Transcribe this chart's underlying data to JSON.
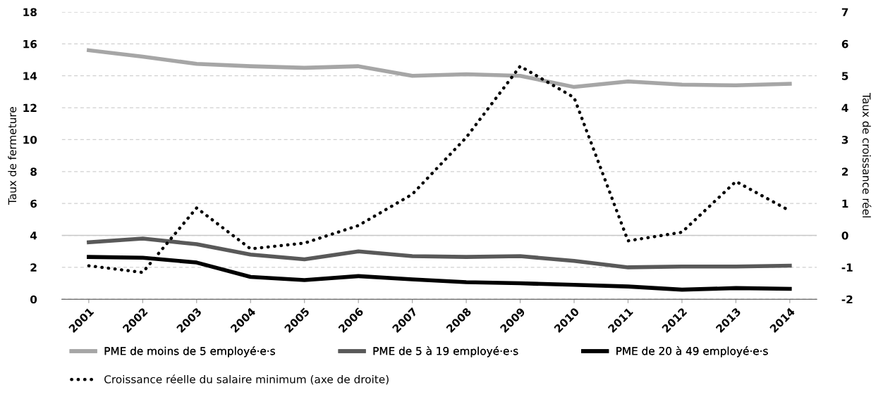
{
  "chart_data": {
    "type": "line",
    "ylabel": "Taux de fermeture",
    "y2label": "Taux de croissance réel",
    "categories": [
      "2001",
      "2002",
      "2003",
      "2004",
      "2005",
      "2006",
      "2007",
      "2008",
      "2009",
      "2010",
      "2011",
      "2012",
      "2013",
      "2014"
    ],
    "series": [
      {
        "name": "PME de moins de 5 employé·e·s",
        "color": "#a6a6a6",
        "line_style": "solid",
        "values": [
          15.6,
          15.2,
          14.75,
          14.6,
          14.5,
          14.6,
          14.0,
          14.1,
          14.0,
          13.3,
          13.65,
          13.45,
          13.4,
          13.5
        ]
      },
      {
        "name": "PME de 5 à 19 employé·e·s",
        "color": "#595959",
        "line_style": "solid",
        "values": [
          3.57,
          3.8,
          3.45,
          2.8,
          2.5,
          3.0,
          2.7,
          2.65,
          2.7,
          2.4,
          2.0,
          2.05,
          2.05,
          2.1
        ]
      },
      {
        "name": "PME de 20 à 49 employé·e·s",
        "color": "#000000",
        "line_style": "solid",
        "values": [
          2.65,
          2.6,
          2.3,
          1.4,
          1.2,
          1.45,
          1.25,
          1.07,
          1.0,
          0.9,
          0.8,
          0.6,
          0.7,
          0.65
        ]
      },
      {
        "name": "Croissance réelle du salaire minimum (axe de droite)",
        "color": "#000000",
        "line_style": "dotted",
        "axis": "y2",
        "values": [
          -0.95,
          -1.16,
          0.86,
          -0.42,
          -0.24,
          0.31,
          1.29,
          3.07,
          5.3,
          4.32,
          -0.17,
          0.1,
          1.69,
          0.77
        ]
      }
    ],
    "ylim": [
      0,
      18
    ],
    "yticks": [
      0,
      2,
      4,
      6,
      8,
      10,
      12,
      14,
      16,
      18
    ],
    "y2lim": [
      -2,
      7
    ],
    "y2ticks": [
      -2,
      -1,
      0,
      1,
      2,
      3,
      4,
      5,
      6,
      7
    ],
    "ref_lines": [
      {
        "axis": "y2",
        "value": 0,
        "color": "#c8c8c8",
        "line_style": "solid"
      }
    ],
    "grid": "y",
    "legend": "bottom",
    "marker": "none"
  }
}
